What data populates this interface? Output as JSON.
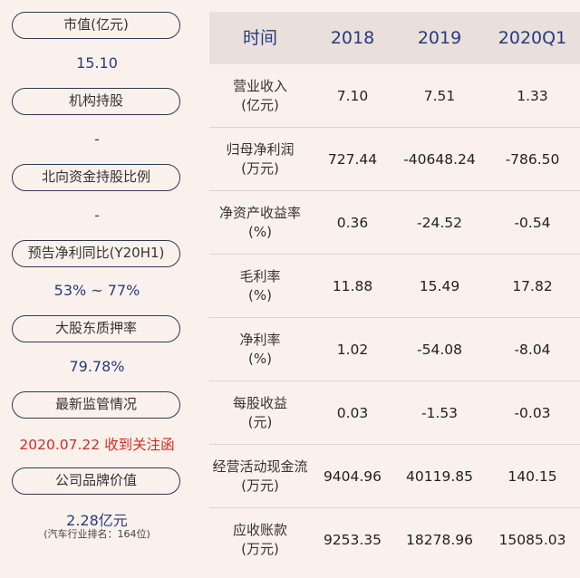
{
  "left": {
    "items": [
      {
        "label": "市值(亿元)",
        "value": "15.10"
      },
      {
        "label": "机构持股",
        "value": "-"
      },
      {
        "label": "北向资金持股比例",
        "value": "-"
      },
      {
        "label": "预告净利同比(Y20H1)",
        "value": "53% ~ 77%"
      },
      {
        "label": "大股东质押率",
        "value": "79.78%"
      },
      {
        "label": "最新监管情况",
        "value": "2020.07.22 收到关注函"
      },
      {
        "label": "公司品牌价值",
        "value": "2.28亿元",
        "note": "(汽车行业排名：164位)"
      }
    ]
  },
  "table": {
    "headers": [
      "时间",
      "2018",
      "2019",
      "2020Q1"
    ],
    "rows": [
      {
        "name": "营业收入",
        "unit": "(亿元)",
        "values": [
          "7.10",
          "7.51",
          "1.33"
        ]
      },
      {
        "name": "归母净利润",
        "unit": "(万元)",
        "values": [
          "727.44",
          "-40648.24",
          "-786.50"
        ]
      },
      {
        "name": "净资产收益率",
        "unit": "(%)",
        "values": [
          "0.36",
          "-24.52",
          "-0.54"
        ]
      },
      {
        "name": "毛利率",
        "unit": "(%)",
        "values": [
          "11.88",
          "15.49",
          "17.82"
        ]
      },
      {
        "name": "净利率",
        "unit": "(%)",
        "values": [
          "1.02",
          "-54.08",
          "-8.04"
        ]
      },
      {
        "name": "每股收益",
        "unit": "(元)",
        "values": [
          "0.03",
          "-1.53",
          "-0.03"
        ]
      },
      {
        "name": "经营活动现金流",
        "unit": "(万元)",
        "values": [
          "9404.96",
          "40119.85",
          "140.15"
        ]
      },
      {
        "name": "应收账款",
        "unit": "(万元)",
        "values": [
          "9253.35",
          "18278.96",
          "15085.03"
        ]
      }
    ]
  },
  "colors": {
    "accent": "#253c82",
    "alert": "#d62b22",
    "background": "#fbf1ec",
    "header_bg": "#e9dfdb"
  }
}
